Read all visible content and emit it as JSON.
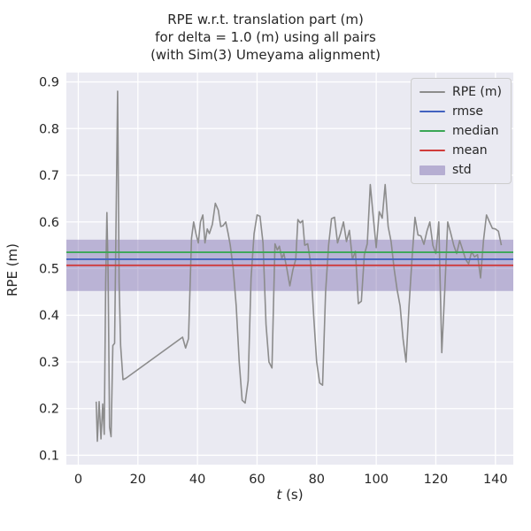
{
  "figure": {
    "title": "RPE w.r.t. translation part (m)\nfor delta = 1.0 (m) using all pairs\n(with Sim(3) Umeyama alignment)",
    "xlabel_main": "t",
    "xlabel_unit": " (s)",
    "ylabel": "RPE (m)"
  },
  "chart_data": {
    "type": "line",
    "title": "RPE w.r.t. translation part (m)\nfor delta = 1.0 (m) using all pairs\n(with Sim(3) Umeyama alignment)",
    "xlabel": "t (s)",
    "ylabel": "RPE (m)",
    "xlim": [
      -4,
      146
    ],
    "ylim": [
      0.08,
      0.92
    ],
    "xticks": [
      0,
      20,
      40,
      60,
      80,
      100,
      120,
      140
    ],
    "xtick_labels": [
      "0",
      "20",
      "40",
      "60",
      "80",
      "100",
      "120",
      "140"
    ],
    "yticks": [
      0.1,
      0.2,
      0.3,
      0.4,
      0.5,
      0.6,
      0.7,
      0.8,
      0.9
    ],
    "ytick_labels": [
      "0.1",
      "0.2",
      "0.3",
      "0.4",
      "0.5",
      "0.6",
      "0.7",
      "0.8",
      "0.9"
    ],
    "grid": true,
    "background": "#eaeaf2",
    "grid_color": "#ffffff",
    "series": {
      "name": "RPE (m)",
      "color": "#8c8c8c",
      "points": [
        [
          6,
          0.215
        ],
        [
          6.4,
          0.13
        ],
        [
          7,
          0.215
        ],
        [
          7.6,
          0.135
        ],
        [
          8.2,
          0.21
        ],
        [
          8.7,
          0.145
        ],
        [
          9.2,
          0.47
        ],
        [
          9.6,
          0.62
        ],
        [
          10,
          0.5
        ],
        [
          10.5,
          0.16
        ],
        [
          11,
          0.14
        ],
        [
          11.6,
          0.335
        ],
        [
          12.2,
          0.34
        ],
        [
          13.2,
          0.88
        ],
        [
          13.7,
          0.47
        ],
        [
          14.2,
          0.335
        ],
        [
          15,
          0.262
        ],
        [
          16,
          0.265
        ],
        [
          35,
          0.353
        ],
        [
          36,
          0.33
        ],
        [
          37,
          0.35
        ],
        [
          38,
          0.565
        ],
        [
          38.7,
          0.6
        ],
        [
          39.5,
          0.575
        ],
        [
          40.3,
          0.555
        ],
        [
          41,
          0.6
        ],
        [
          41.8,
          0.615
        ],
        [
          42.5,
          0.555
        ],
        [
          43.3,
          0.585
        ],
        [
          44,
          0.575
        ],
        [
          45,
          0.595
        ],
        [
          46,
          0.64
        ],
        [
          47,
          0.625
        ],
        [
          47.8,
          0.59
        ],
        [
          48.6,
          0.592
        ],
        [
          49.5,
          0.6
        ],
        [
          50.3,
          0.575
        ],
        [
          51,
          0.55
        ],
        [
          52,
          0.5
        ],
        [
          53,
          0.42
        ],
        [
          54,
          0.3
        ],
        [
          55,
          0.218
        ],
        [
          56,
          0.212
        ],
        [
          57,
          0.26
        ],
        [
          58,
          0.48
        ],
        [
          59,
          0.575
        ],
        [
          60,
          0.615
        ],
        [
          61,
          0.612
        ],
        [
          62,
          0.555
        ],
        [
          63,
          0.38
        ],
        [
          64,
          0.3
        ],
        [
          65,
          0.287
        ],
        [
          66,
          0.553
        ],
        [
          66.8,
          0.54
        ],
        [
          67.5,
          0.548
        ],
        [
          68.3,
          0.522
        ],
        [
          69,
          0.532
        ],
        [
          70,
          0.5
        ],
        [
          71,
          0.463
        ],
        [
          72,
          0.497
        ],
        [
          73,
          0.52
        ],
        [
          73.7,
          0.605
        ],
        [
          74.5,
          0.598
        ],
        [
          75.3,
          0.603
        ],
        [
          76,
          0.55
        ],
        [
          77,
          0.553
        ],
        [
          78,
          0.51
        ],
        [
          79,
          0.4
        ],
        [
          80,
          0.3
        ],
        [
          81,
          0.255
        ],
        [
          82,
          0.25
        ],
        [
          83,
          0.45
        ],
        [
          84,
          0.55
        ],
        [
          85,
          0.607
        ],
        [
          86,
          0.61
        ],
        [
          87,
          0.555
        ],
        [
          88,
          0.575
        ],
        [
          89,
          0.6
        ],
        [
          90,
          0.558
        ],
        [
          91,
          0.582
        ],
        [
          92,
          0.52
        ],
        [
          93,
          0.537
        ],
        [
          94,
          0.425
        ],
        [
          95,
          0.43
        ],
        [
          96,
          0.53
        ],
        [
          97,
          0.553
        ],
        [
          98,
          0.68
        ],
        [
          99,
          0.61
        ],
        [
          100,
          0.545
        ],
        [
          101,
          0.622
        ],
        [
          102,
          0.608
        ],
        [
          103,
          0.68
        ],
        [
          104,
          0.59
        ],
        [
          105,
          0.557
        ],
        [
          106,
          0.5
        ],
        [
          107,
          0.455
        ],
        [
          108,
          0.42
        ],
        [
          109,
          0.35
        ],
        [
          110,
          0.3
        ],
        [
          111,
          0.42
        ],
        [
          112,
          0.52
        ],
        [
          113,
          0.61
        ],
        [
          114,
          0.572
        ],
        [
          115,
          0.57
        ],
        [
          116,
          0.552
        ],
        [
          117,
          0.58
        ],
        [
          118,
          0.6
        ],
        [
          119,
          0.55
        ],
        [
          120,
          0.532
        ],
        [
          121,
          0.6
        ],
        [
          122,
          0.32
        ],
        [
          123,
          0.455
        ],
        [
          124,
          0.6
        ],
        [
          125,
          0.576
        ],
        [
          126,
          0.55
        ],
        [
          127,
          0.532
        ],
        [
          128,
          0.56
        ],
        [
          129,
          0.54
        ],
        [
          130,
          0.52
        ],
        [
          131,
          0.51
        ],
        [
          132,
          0.536
        ],
        [
          133,
          0.525
        ],
        [
          134,
          0.53
        ],
        [
          135,
          0.48
        ],
        [
          136,
          0.56
        ],
        [
          137,
          0.615
        ],
        [
          138,
          0.6
        ],
        [
          139,
          0.586
        ],
        [
          140,
          0.585
        ],
        [
          141,
          0.58
        ],
        [
          142,
          0.55
        ]
      ]
    },
    "stats": {
      "rmse": {
        "value": 0.52,
        "color": "#4262c0"
      },
      "median": {
        "value": 0.535,
        "color": "#3aa655"
      },
      "mean": {
        "value": 0.507,
        "color": "#d03b3b"
      },
      "std": {
        "band": [
          0.452,
          0.562
        ],
        "color": "#8172b2",
        "opacity": 0.45
      }
    },
    "legend": [
      {
        "label": "RPE (m)",
        "color": "#8c8c8c",
        "kind": "line"
      },
      {
        "label": "rmse",
        "color": "#4262c0",
        "kind": "line"
      },
      {
        "label": "median",
        "color": "#3aa655",
        "kind": "line"
      },
      {
        "label": "mean",
        "color": "#d03b3b",
        "kind": "line"
      },
      {
        "label": "std",
        "color": "#8172b2",
        "kind": "patch"
      }
    ],
    "legend_position": "upper right"
  }
}
